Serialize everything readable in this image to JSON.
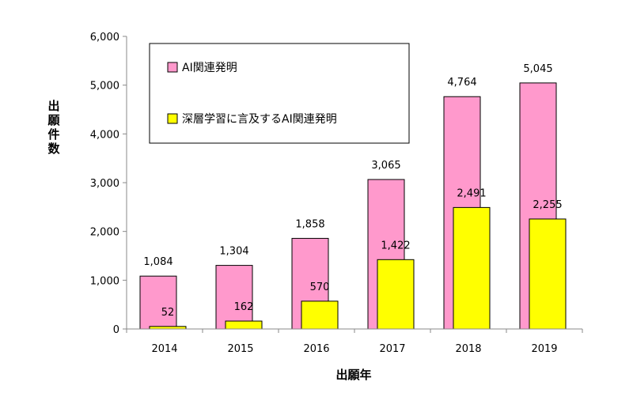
{
  "chart_data": {
    "type": "bar",
    "categories": [
      "2014",
      "2015",
      "2016",
      "2017",
      "2018",
      "2019"
    ],
    "series": [
      {
        "name": "AI関連発明",
        "values": [
          1084,
          1304,
          1858,
          3065,
          4764,
          5045
        ],
        "labels": [
          "1,084",
          "1,304",
          "1,858",
          "3,065",
          "4,764",
          "5,045"
        ],
        "color": "#ff99cc"
      },
      {
        "name": "深層学習に言及するAI関連発明",
        "values": [
          52,
          162,
          570,
          1422,
          2491,
          2255
        ],
        "labels": [
          "52",
          "162",
          "570",
          "1,422",
          "2,491",
          "2,255"
        ],
        "color": "#ffff00"
      }
    ],
    "xlabel": "出願年",
    "ylabel": "出願件数",
    "ylim": [
      0,
      6000
    ],
    "yticks": [
      0,
      1000,
      2000,
      3000,
      4000,
      5000,
      6000
    ],
    "ytick_labels": [
      "0",
      "1,000",
      "2,000",
      "3,000",
      "4,000",
      "5,000",
      "6,000"
    ],
    "grid": false,
    "legend_position": "top-left"
  }
}
